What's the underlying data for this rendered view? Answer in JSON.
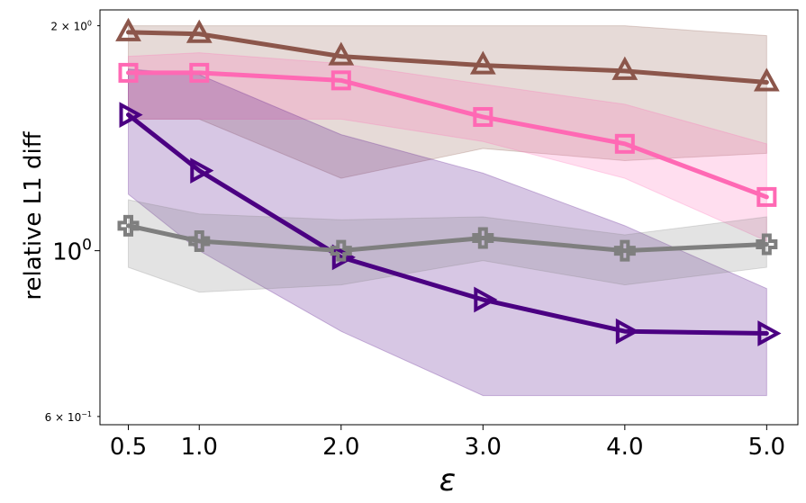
{
  "chart_data": {
    "type": "line",
    "title": "",
    "xlabel": "ε",
    "ylabel": "relative L1 diff",
    "yscale": "log",
    "x": [
      0.5,
      1.0,
      2.0,
      3.0,
      4.0,
      5.0
    ],
    "x_tick_labels": [
      "0.5",
      "1.0",
      "2.0",
      "3.0",
      "4.0",
      "5.0"
    ],
    "xlim": [
      0.3,
      5.22
    ],
    "ylim": [
      0.585,
      2.1
    ],
    "y_ticks": [
      {
        "value": 2.0,
        "base": "2 × 10",
        "exp": "0",
        "size": "small"
      },
      {
        "value": 1.0,
        "base": "10",
        "exp": "0",
        "size": "large"
      },
      {
        "value": 0.6,
        "base": "6 × 10",
        "exp": "−1",
        "size": "small"
      }
    ],
    "series": [
      {
        "name": "brown-triangle-up",
        "color": "#8c564b",
        "marker": "triangle-up",
        "values": [
          1.96,
          1.95,
          1.82,
          1.77,
          1.74,
          1.68
        ],
        "lower": [
          1.5,
          1.5,
          1.25,
          1.37,
          1.32,
          1.35
        ],
        "upper": [
          2.0,
          2.0,
          2.0,
          2.0,
          2.0,
          1.94
        ]
      },
      {
        "name": "pink-square",
        "color": "#ff69b4",
        "marker": "square",
        "values": [
          1.73,
          1.73,
          1.69,
          1.51,
          1.39,
          1.18
        ],
        "lower": [
          1.5,
          1.5,
          1.5,
          1.4,
          1.25,
          1.03
        ],
        "upper": [
          1.82,
          1.84,
          1.78,
          1.67,
          1.57,
          1.39
        ]
      },
      {
        "name": "purple-triangle-right",
        "color": "#4b0082",
        "marker": "triangle-right",
        "values": [
          1.52,
          1.28,
          0.98,
          0.86,
          0.78,
          0.775
        ],
        "lower": [
          1.19,
          1.0,
          0.78,
          0.64,
          0.64,
          0.64
        ],
        "upper": [
          1.75,
          1.72,
          1.43,
          1.27,
          1.08,
          0.89
        ]
      },
      {
        "name": "gray-plus",
        "color": "#7f7f7f",
        "marker": "plus",
        "values": [
          1.08,
          1.03,
          1.0,
          1.04,
          1.0,
          1.02
        ],
        "lower": [
          0.95,
          0.88,
          0.9,
          0.97,
          0.9,
          0.95
        ],
        "upper": [
          1.17,
          1.12,
          1.1,
          1.11,
          1.05,
          1.11
        ]
      }
    ]
  }
}
